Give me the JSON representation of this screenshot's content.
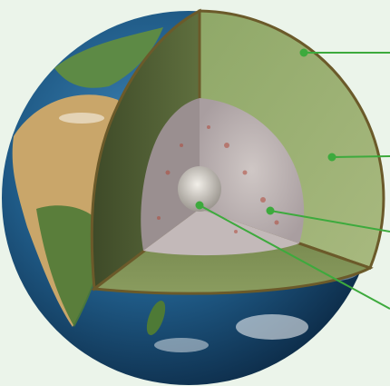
{
  "colors": {
    "background": "#ebf4ea",
    "ocean": "#1f5a86",
    "ocean_dark": "#0b2742",
    "land_desert": "#c9a66a",
    "land_green": "#4e7a36",
    "crust_edge": "#6b5a2a",
    "mantle": "#9aae72",
    "mantle_shade": "#5f6f3e",
    "outer_core": "#b9b3b5",
    "inner_core": "#d6d3cf",
    "leader_line": "#3daa3d"
  },
  "layers": [
    {
      "id": "crust",
      "label": ""
    },
    {
      "id": "mantle",
      "label": ""
    },
    {
      "id": "outer-core",
      "label": ""
    },
    {
      "id": "inner-core",
      "label": ""
    }
  ]
}
